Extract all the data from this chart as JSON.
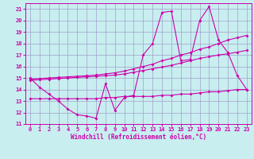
{
  "background_color": "#c8eef0",
  "grid_color": "#a0a0c8",
  "line_color": "#cc00aa",
  "xlabel": "Windchill (Refroidissement éolien,°C)",
  "xlim": [
    -0.5,
    23.5
  ],
  "ylim": [
    11,
    21.5
  ],
  "xticks": [
    0,
    1,
    2,
    3,
    4,
    5,
    6,
    7,
    8,
    9,
    10,
    11,
    12,
    13,
    14,
    15,
    16,
    17,
    18,
    19,
    20,
    21,
    22,
    23
  ],
  "yticks": [
    11,
    12,
    13,
    14,
    15,
    16,
    17,
    18,
    19,
    20,
    21
  ],
  "series1_x": [
    0,
    1,
    2,
    3,
    4,
    5,
    6,
    7,
    8,
    9,
    10,
    11,
    12,
    13,
    14,
    15,
    16,
    17,
    18,
    19,
    20,
    21,
    22,
    23
  ],
  "series1_y": [
    15.0,
    14.2,
    13.6,
    13.0,
    12.3,
    11.8,
    11.7,
    11.5,
    14.5,
    12.2,
    13.3,
    13.5,
    17.0,
    18.0,
    20.7,
    20.8,
    16.5,
    16.6,
    20.0,
    21.2,
    18.3,
    17.2,
    15.2,
    14.0
  ],
  "series2_x": [
    0,
    1,
    2,
    3,
    4,
    5,
    6,
    7,
    8,
    9,
    10,
    11,
    12,
    13,
    14,
    15,
    16,
    17,
    18,
    19,
    20,
    21,
    22,
    23
  ],
  "series2_y": [
    14.8,
    14.85,
    14.9,
    14.95,
    15.0,
    15.05,
    15.1,
    15.15,
    15.2,
    15.25,
    15.35,
    15.5,
    15.65,
    15.8,
    15.95,
    16.1,
    16.3,
    16.5,
    16.7,
    16.85,
    17.0,
    17.1,
    17.25,
    17.4
  ],
  "series3_x": [
    0,
    1,
    2,
    3,
    4,
    5,
    6,
    7,
    8,
    9,
    10,
    11,
    12,
    13,
    14,
    15,
    16,
    17,
    18,
    19,
    20,
    21,
    22,
    23
  ],
  "series3_y": [
    14.9,
    14.95,
    15.0,
    15.05,
    15.1,
    15.15,
    15.2,
    15.25,
    15.35,
    15.45,
    15.6,
    15.8,
    16.0,
    16.2,
    16.5,
    16.7,
    17.0,
    17.2,
    17.5,
    17.7,
    18.0,
    18.3,
    18.5,
    18.7
  ],
  "series4_x": [
    0,
    1,
    2,
    3,
    4,
    5,
    6,
    7,
    8,
    9,
    10,
    11,
    12,
    13,
    14,
    15,
    16,
    17,
    18,
    19,
    20,
    21,
    22,
    23
  ],
  "series4_y": [
    13.2,
    13.2,
    13.2,
    13.2,
    13.2,
    13.2,
    13.2,
    13.2,
    13.3,
    13.3,
    13.4,
    13.4,
    13.4,
    13.4,
    13.5,
    13.5,
    13.6,
    13.6,
    13.7,
    13.8,
    13.8,
    13.9,
    14.0,
    14.0
  ]
}
